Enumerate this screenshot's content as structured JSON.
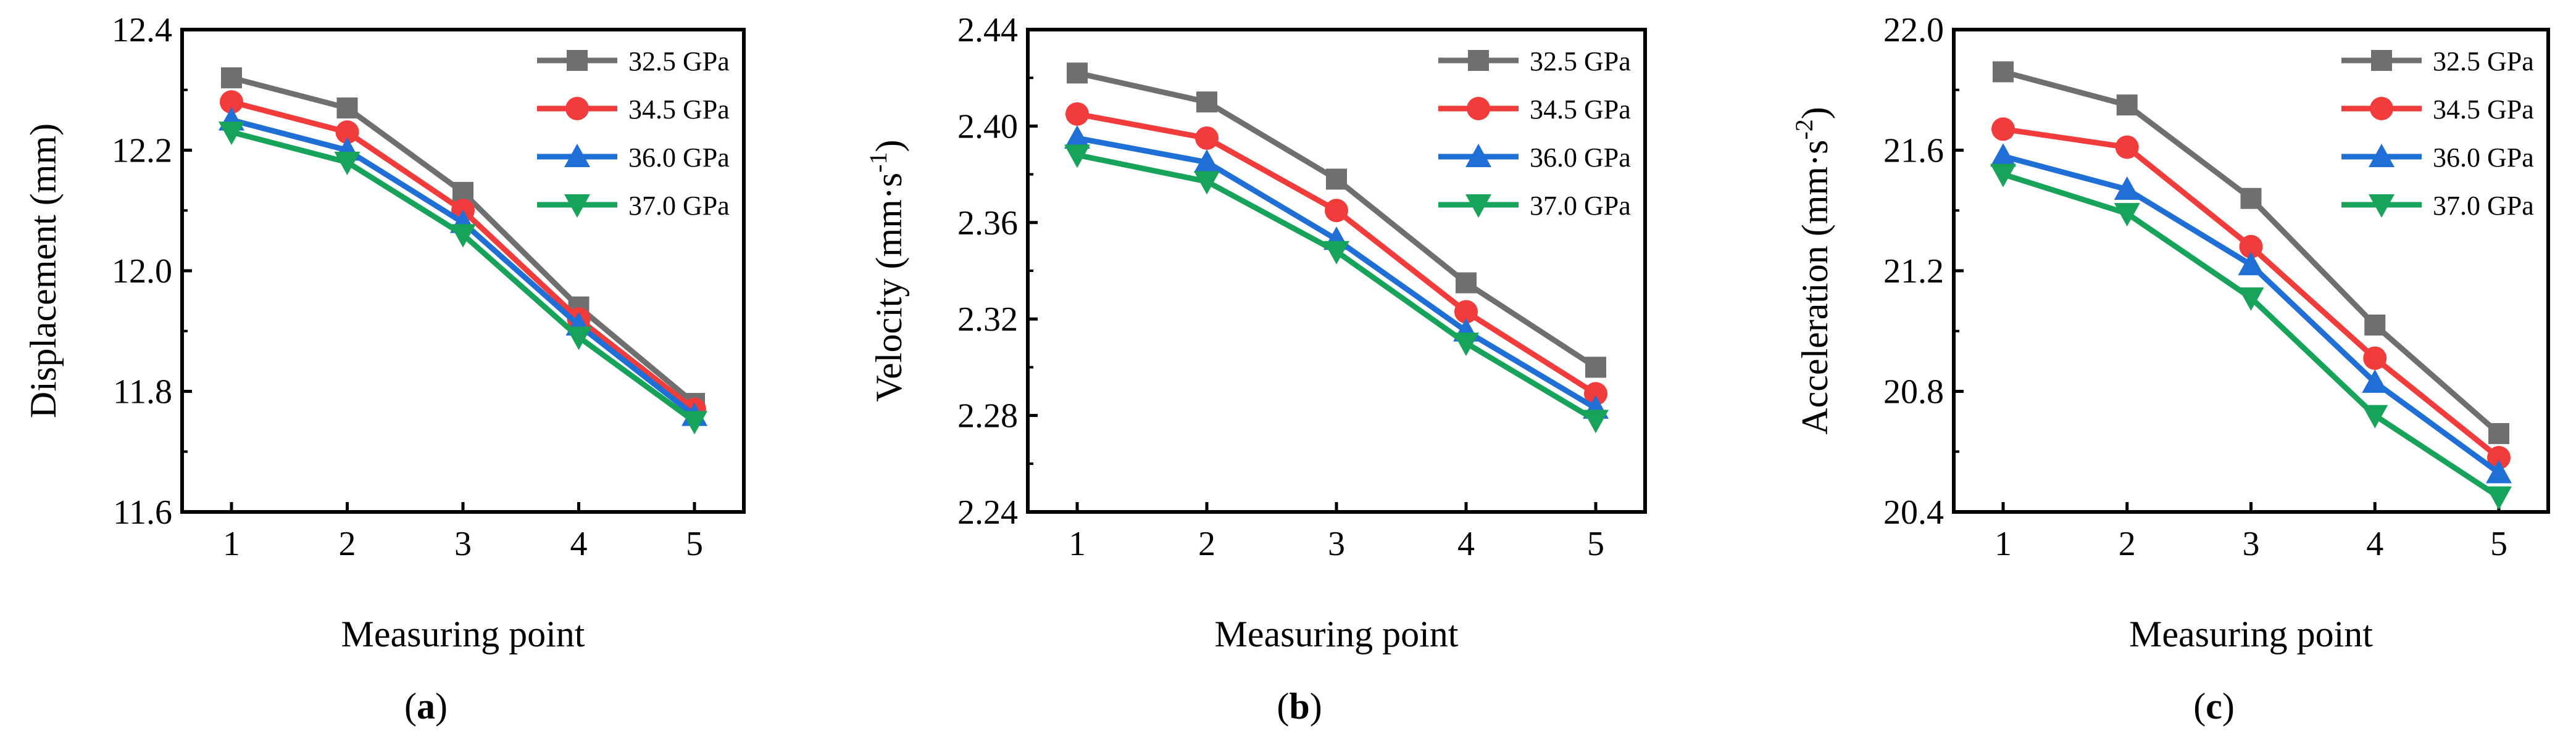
{
  "chart_data": [
    {
      "type": "line",
      "panel_label": "a",
      "xlabel": "Measuring point",
      "ylabel": "Displacement (mm)",
      "x": [
        1,
        2,
        3,
        4,
        5
      ],
      "xticks": [
        "1",
        "2",
        "3",
        "4",
        "5"
      ],
      "ylim": [
        11.6,
        12.4
      ],
      "yticks": [
        "11.6",
        "11.8",
        "12.0",
        "12.2",
        "12.4"
      ],
      "legend_position": "top-right",
      "series": [
        {
          "name": "32.5 GPa",
          "values": [
            12.32,
            12.27,
            12.13,
            11.94,
            11.78
          ]
        },
        {
          "name": "34.5 GPa",
          "values": [
            12.28,
            12.23,
            12.1,
            11.92,
            11.77
          ]
        },
        {
          "name": "36.0 GPa",
          "values": [
            12.25,
            12.2,
            12.08,
            11.91,
            11.76
          ]
        },
        {
          "name": "37.0 GPa",
          "values": [
            12.23,
            12.18,
            12.06,
            11.89,
            11.75
          ]
        }
      ]
    },
    {
      "type": "line",
      "panel_label": "b",
      "xlabel": "Measuring point",
      "ylabel": "Velocity (mm·s",
      "ylabel_sup": "-1",
      "ylabel_end": ")",
      "x": [
        1,
        2,
        3,
        4,
        5
      ],
      "xticks": [
        "1",
        "2",
        "3",
        "4",
        "5"
      ],
      "ylim": [
        2.24,
        2.44
      ],
      "yticks": [
        "2.24",
        "2.28",
        "2.32",
        "2.36",
        "2.40",
        "2.44"
      ],
      "legend_position": "top-right",
      "series": [
        {
          "name": "32.5 GPa",
          "values": [
            2.422,
            2.41,
            2.378,
            2.335,
            2.3
          ]
        },
        {
          "name": "34.5 GPa",
          "values": [
            2.405,
            2.395,
            2.365,
            2.323,
            2.289
          ]
        },
        {
          "name": "36.0 GPa",
          "values": [
            2.395,
            2.385,
            2.353,
            2.315,
            2.283
          ]
        },
        {
          "name": "37.0 GPa",
          "values": [
            2.388,
            2.377,
            2.348,
            2.31,
            2.278
          ]
        }
      ]
    },
    {
      "type": "line",
      "panel_label": "c",
      "xlabel": "Measuring point",
      "ylabel": "Acceleration (mm·s",
      "ylabel_sup": "-2",
      "ylabel_end": ")",
      "x": [
        1,
        2,
        3,
        4,
        5
      ],
      "xticks": [
        "1",
        "2",
        "3",
        "4",
        "5"
      ],
      "ylim": [
        20.4,
        22.0
      ],
      "yticks": [
        "20.4",
        "20.8",
        "21.2",
        "21.6",
        "22.0"
      ],
      "legend_position": "top-right",
      "series": [
        {
          "name": "32.5 GPa",
          "values": [
            21.86,
            21.75,
            21.44,
            21.02,
            20.66
          ]
        },
        {
          "name": "34.5 GPa",
          "values": [
            21.67,
            21.61,
            21.28,
            20.91,
            20.58
          ]
        },
        {
          "name": "36.0 GPa",
          "values": [
            21.58,
            21.47,
            21.22,
            20.83,
            20.53
          ]
        },
        {
          "name": "37.0 GPa",
          "values": [
            21.52,
            21.39,
            21.11,
            20.72,
            20.45
          ]
        }
      ]
    }
  ],
  "series_style": [
    {
      "color": "#6f6f6f",
      "marker": "square"
    },
    {
      "color": "#f23b3b",
      "marker": "circle"
    },
    {
      "color": "#1f6fd6",
      "marker": "triangle-up"
    },
    {
      "color": "#17a35a",
      "marker": "triangle-down"
    }
  ]
}
